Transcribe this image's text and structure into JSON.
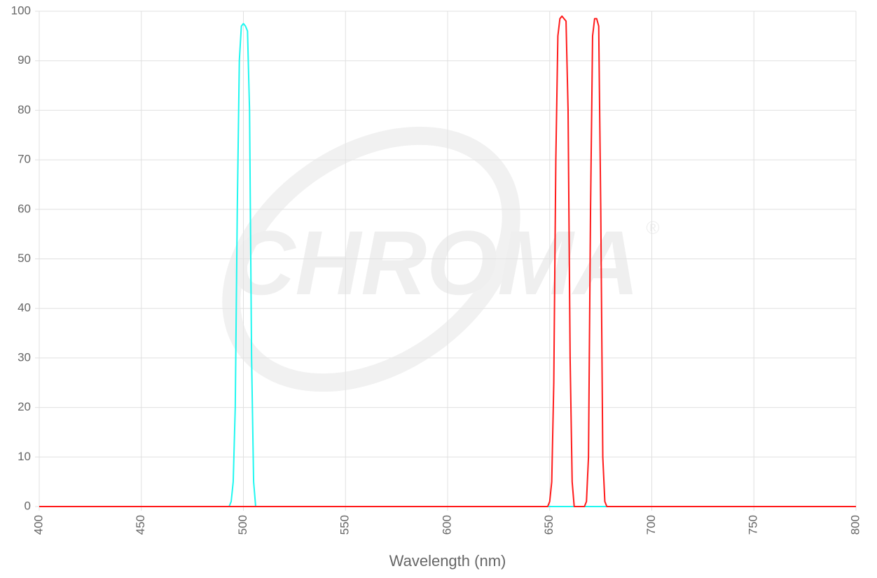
{
  "chart_data": {
    "type": "line",
    "x_label": "Wavelength (nm)",
    "watermark": "CHROMA",
    "watermark_symbol": "®",
    "xlim": [
      400,
      800
    ],
    "xticks": [
      400,
      450,
      500,
      550,
      600,
      650,
      700,
      750,
      800
    ],
    "ylim": [
      0,
      100
    ],
    "yticks": [
      0,
      10,
      20,
      30,
      40,
      50,
      60,
      70,
      80,
      90,
      100
    ],
    "grid": true,
    "series": [
      {
        "color": "#1ff7f0",
        "x": [
          400,
          493,
          494,
          495,
          496,
          497,
          498,
          499,
          500,
          501,
          502,
          503,
          504,
          505,
          506,
          800
        ],
        "values": [
          0,
          0,
          1,
          5,
          20,
          60,
          90,
          97,
          97.5,
          97,
          96,
          80,
          30,
          5,
          0,
          0
        ]
      },
      {
        "color": "#ff1a1a",
        "x": [
          400,
          649,
          650,
          651,
          652,
          653,
          654,
          655,
          656,
          657,
          658,
          659,
          660,
          661,
          662,
          667,
          668,
          669,
          670,
          671,
          672,
          673,
          674,
          675,
          676,
          677,
          678,
          800
        ],
        "values": [
          0,
          0,
          1,
          5,
          25,
          70,
          95,
          98.5,
          99,
          98.5,
          98,
          80,
          30,
          5,
          0,
          0,
          1,
          10,
          60,
          95,
          98.5,
          98.5,
          97,
          60,
          10,
          1,
          0,
          0
        ]
      }
    ]
  }
}
